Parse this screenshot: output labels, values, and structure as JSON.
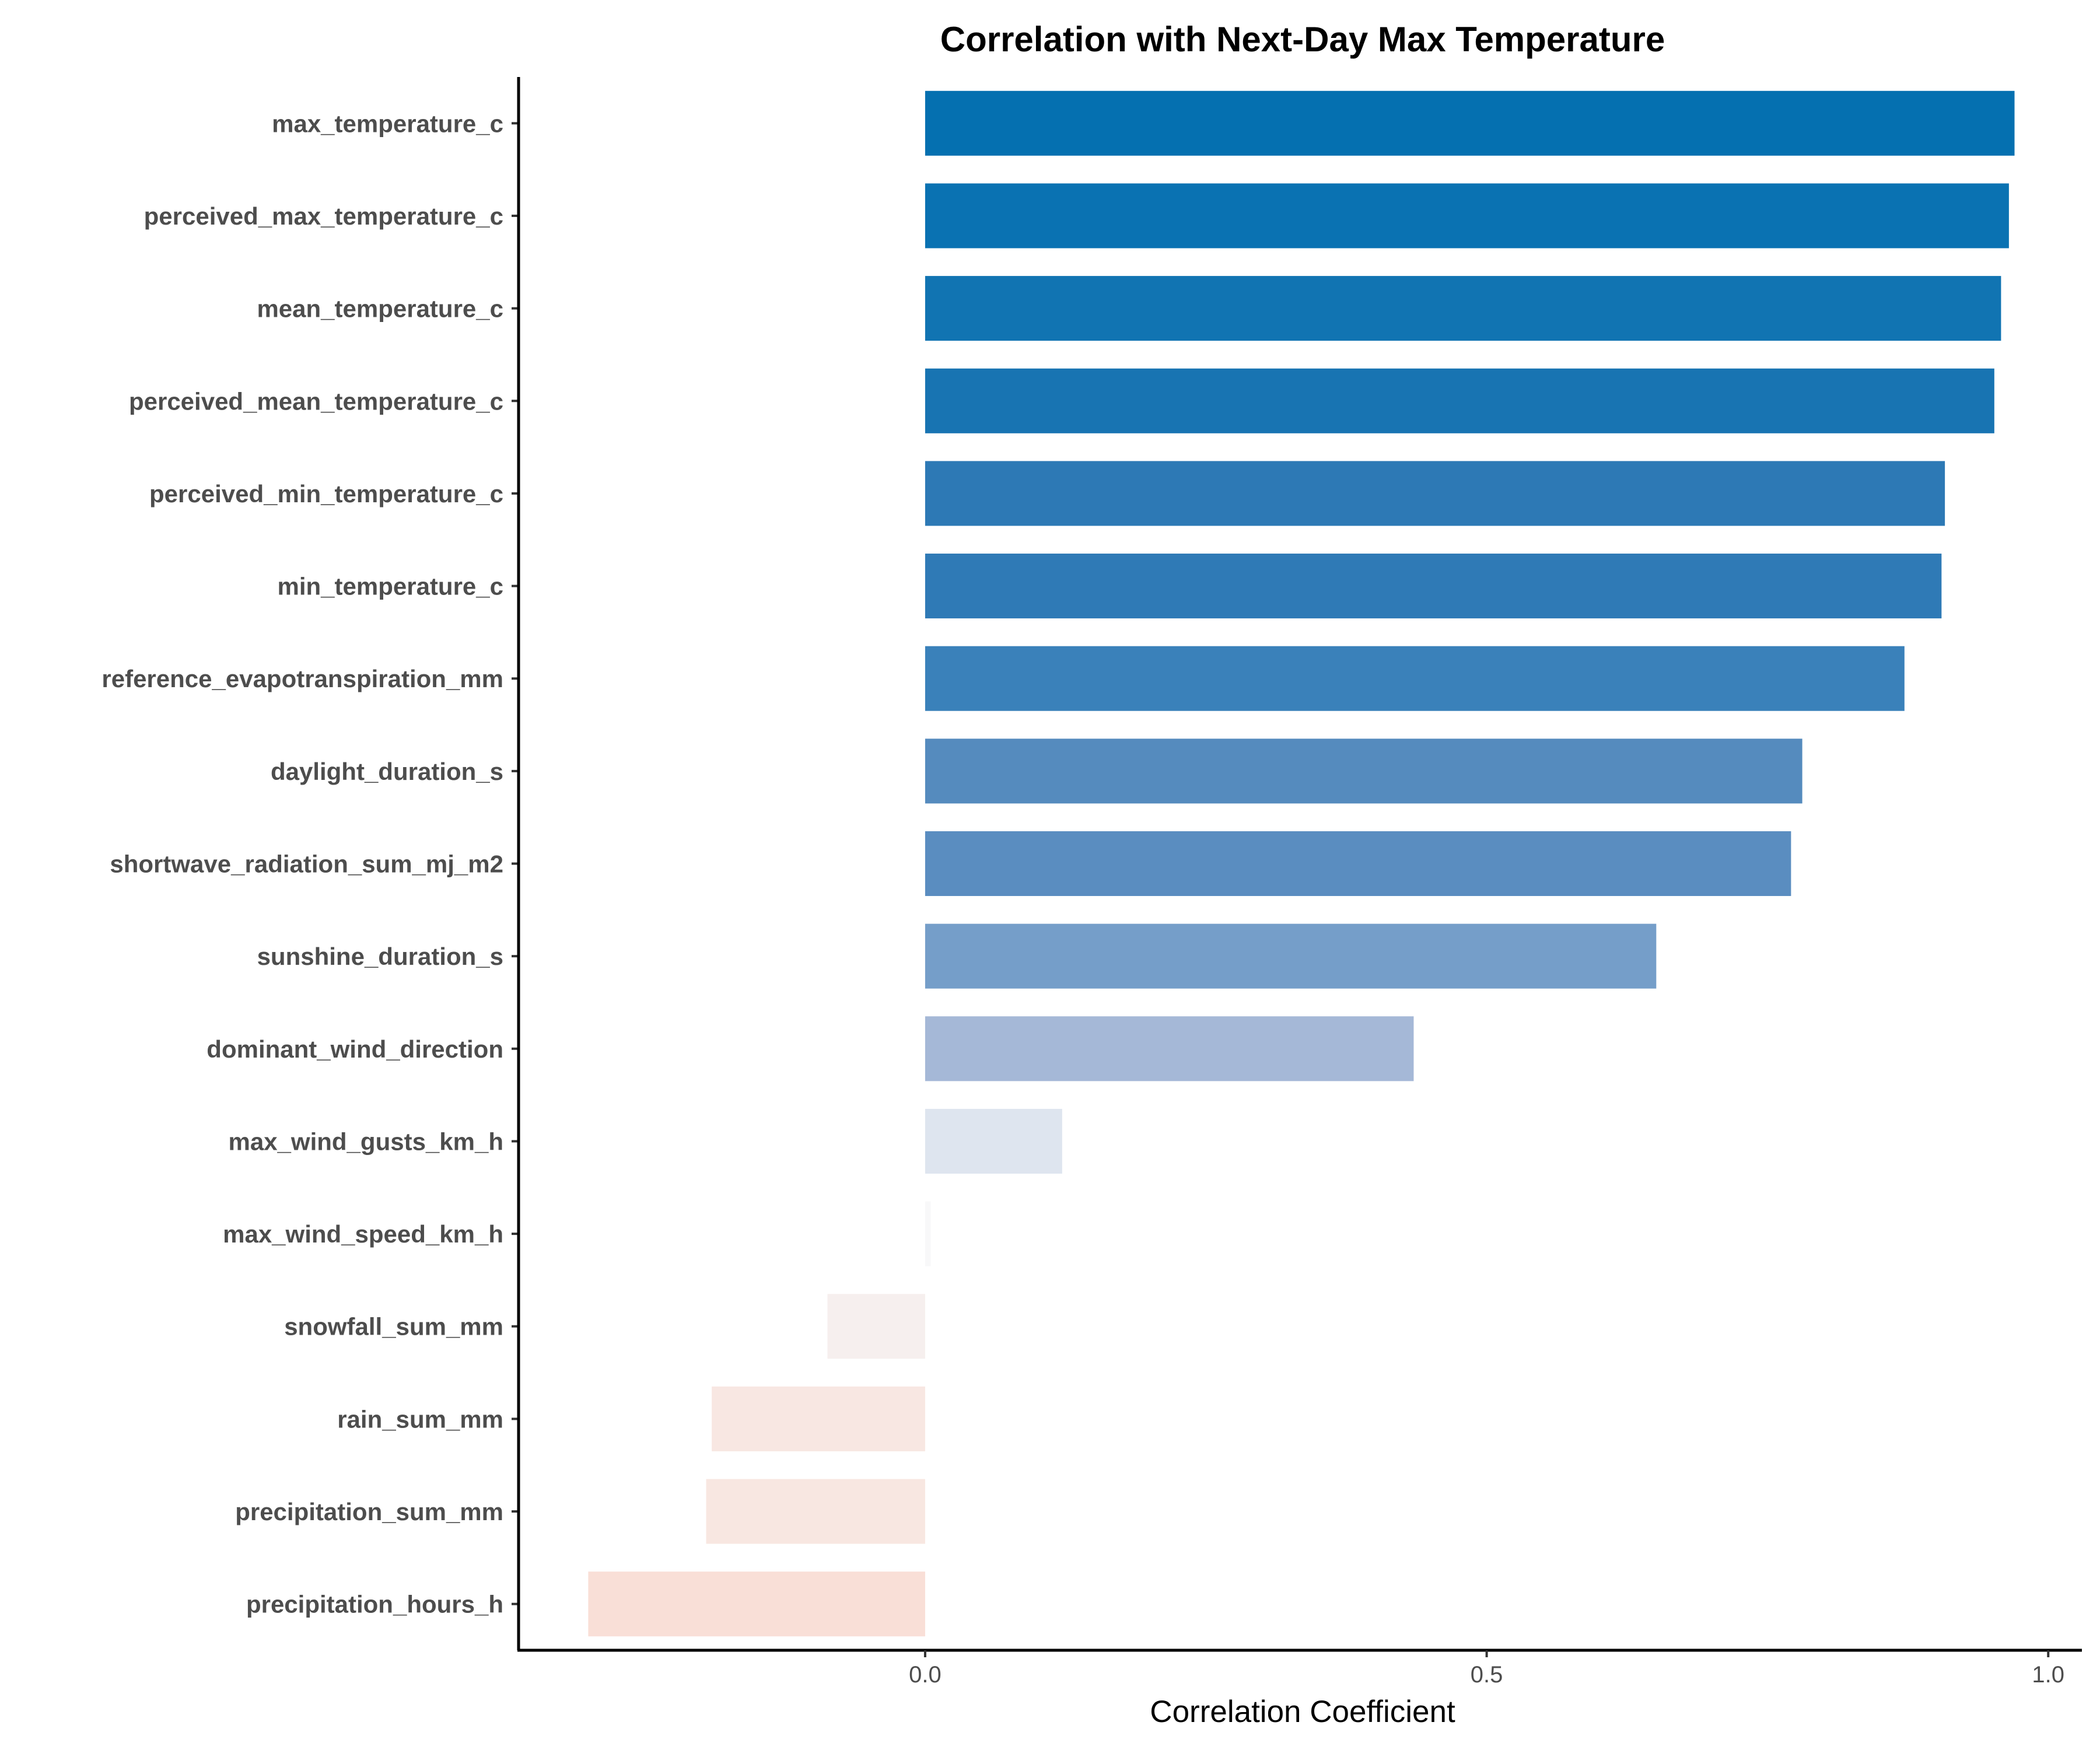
{
  "chart_data": {
    "type": "bar",
    "orientation": "horizontal",
    "title": "Correlation with Next-Day Max Temperature",
    "xlabel": "Correlation Coefficient",
    "ylabel": "",
    "xlim": [
      -0.362,
      1.03
    ],
    "xticks": [
      0.0,
      0.5,
      1.0
    ],
    "xtick_labels": [
      "0.0",
      "0.5",
      "1.0"
    ],
    "grid": false,
    "legend": "none",
    "categories": [
      "max_temperature_c",
      "perceived_max_temperature_c",
      "mean_temperature_c",
      "perceived_mean_temperature_c",
      "perceived_min_temperature_c",
      "min_temperature_c",
      "reference_evapotranspiration_mm",
      "daylight_duration_s",
      "shortwave_radiation_sum_mj_m2",
      "sunshine_duration_s",
      "dominant_wind_direction",
      "max_wind_gusts_km_h",
      "max_wind_speed_km_h",
      "snowfall_sum_mm",
      "rain_sum_mm",
      "precipitation_sum_mm",
      "precipitation_hours_h"
    ],
    "values": [
      0.97,
      0.965,
      0.958,
      0.952,
      0.908,
      0.905,
      0.872,
      0.781,
      0.771,
      0.651,
      0.435,
      0.122,
      0.005,
      -0.087,
      -0.19,
      -0.195,
      -0.3
    ],
    "colors": [
      "#0570b0",
      "#0a72b2",
      "#1174b2",
      "#1874b2",
      "#2d79b5",
      "#2f7ab6",
      "#3a81ba",
      "#558bbe",
      "#5a8dc0",
      "#759ec9",
      "#a5b8d7",
      "#dee5ef",
      "#f8f8f9",
      "#f6efee",
      "#f8e7e2",
      "#f8e7e1",
      "#f9dfd7"
    ]
  }
}
